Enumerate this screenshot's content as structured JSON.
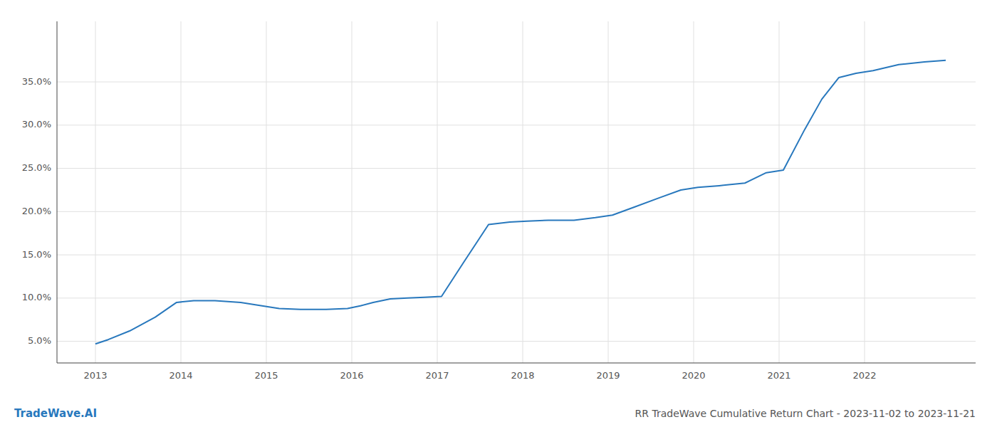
{
  "chart_data": {
    "type": "line",
    "title": "RR TradeWave Cumulative Return Chart - 2023-11-02 to 2023-11-21",
    "annotations": [
      "TradeWave.AI"
    ],
    "x": [
      2013.0,
      2013.15,
      2013.4,
      2013.7,
      2013.95,
      2014.15,
      2014.4,
      2014.7,
      2014.95,
      2015.15,
      2015.4,
      2015.7,
      2015.95,
      2016.1,
      2016.25,
      2016.45,
      2016.65,
      2016.85,
      2017.05,
      2017.3,
      2017.6,
      2017.85,
      2018.05,
      2018.3,
      2018.6,
      2018.85,
      2019.05,
      2019.3,
      2019.6,
      2019.85,
      2020.05,
      2020.3,
      2020.6,
      2020.85,
      2021.05,
      2021.3,
      2021.5,
      2021.7,
      2021.9,
      2022.1,
      2022.4,
      2022.7,
      2022.95
    ],
    "values": [
      4.7,
      5.2,
      6.2,
      7.8,
      9.5,
      9.7,
      9.7,
      9.5,
      9.1,
      8.8,
      8.7,
      8.7,
      8.8,
      9.1,
      9.5,
      9.9,
      10.0,
      10.1,
      10.2,
      14.0,
      18.5,
      18.8,
      18.9,
      19.0,
      19.0,
      19.3,
      19.6,
      20.5,
      21.6,
      22.5,
      22.8,
      23.0,
      23.3,
      24.5,
      24.8,
      29.5,
      33.0,
      35.5,
      36.0,
      36.3,
      37.0,
      37.3,
      37.5
    ],
    "color": "#2878bd",
    "grid": true,
    "xlim": [
      2012.55,
      2023.3
    ],
    "ylim": [
      2.5,
      42.0
    ],
    "xticks": [
      2013,
      2014,
      2015,
      2016,
      2017,
      2018,
      2019,
      2020,
      2021,
      2022
    ],
    "yticks": [
      {
        "value": 5.0,
        "label": "5.0%"
      },
      {
        "value": 10.0,
        "label": "10.0%"
      },
      {
        "value": 15.0,
        "label": "15.0%"
      },
      {
        "value": 20.0,
        "label": "20.0%"
      },
      {
        "value": 25.0,
        "label": "25.0%"
      },
      {
        "value": 30.0,
        "label": "30.0%"
      },
      {
        "value": 35.0,
        "label": "35.0%"
      }
    ]
  }
}
